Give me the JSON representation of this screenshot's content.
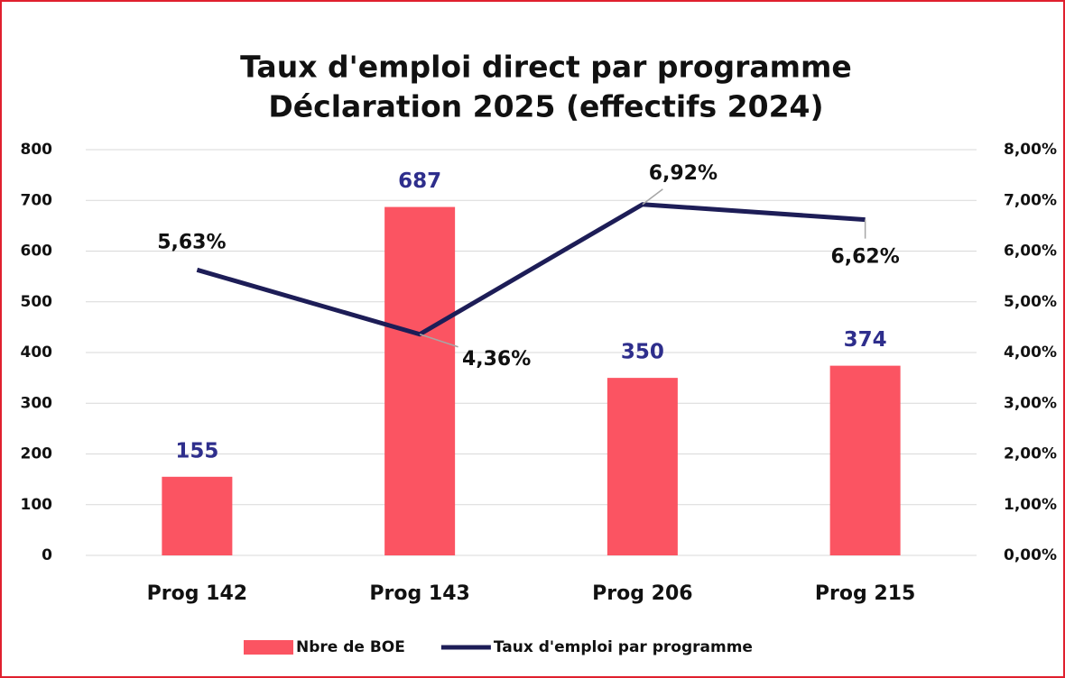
{
  "chart_data": {
    "type": "bar",
    "title": "Taux d'emploi direct par programme",
    "subtitle": "Déclaration 2025 (effectifs 2024)",
    "categories": [
      "Prog 142",
      "Prog 143",
      "Prog 206",
      "Prog 215"
    ],
    "series": [
      {
        "name": "Nbre de BOE",
        "type": "bar",
        "color": "#fb5462",
        "values": [
          155,
          687,
          350,
          374
        ]
      },
      {
        "name": "Taux d'emploi par programme",
        "type": "line",
        "axis": "y2",
        "color": "#1d1d57",
        "values": [
          5.63,
          4.36,
          6.92,
          6.62
        ],
        "value_labels": [
          "5,63%",
          "4,36%",
          "6,92%",
          "6,62%"
        ]
      }
    ],
    "ylim": [
      0,
      800
    ],
    "yticks": [
      0,
      100,
      200,
      300,
      400,
      500,
      600,
      700,
      800
    ],
    "y2lim": [
      0,
      8
    ],
    "y2ticks": [
      {
        "value": 0,
        "label": "0,00%"
      },
      {
        "value": 1,
        "label": "1,00%"
      },
      {
        "value": 2,
        "label": "2,00%"
      },
      {
        "value": 3,
        "label": "3,00%"
      },
      {
        "value": 4,
        "label": "4,00%"
      },
      {
        "value": 5,
        "label": "5,00%"
      },
      {
        "value": 6,
        "label": "6,00%"
      },
      {
        "value": 7,
        "label": "7,00%"
      },
      {
        "value": 8,
        "label": "8,00%"
      }
    ],
    "grid": true,
    "legend": "bottom"
  }
}
